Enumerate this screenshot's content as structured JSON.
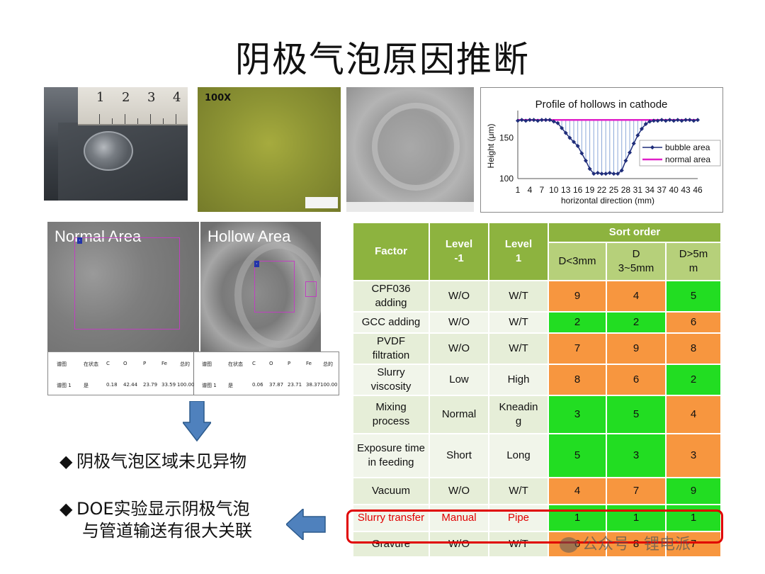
{
  "page": {
    "title": "阴极气泡原因推断"
  },
  "photos": {
    "ruler_numbers": [
      "1",
      "2",
      "3",
      "4"
    ],
    "micro_label": "100X"
  },
  "profile_chart": {
    "chart_data": {
      "type": "line",
      "title": "Profile of hollows in cathode",
      "xlabel": "horizontal direction (mm)",
      "ylabel": "Height (μm)",
      "ylim": [
        100,
        180
      ],
      "yticks": [
        100,
        150
      ],
      "xticks": [
        "1",
        "4",
        "7",
        "10",
        "13",
        "16",
        "19",
        "22",
        "25",
        "28",
        "31",
        "34",
        "37",
        "40",
        "43",
        "46"
      ],
      "x": [
        1,
        2,
        3,
        4,
        5,
        6,
        7,
        8,
        9,
        10,
        11,
        12,
        13,
        14,
        15,
        16,
        17,
        18,
        19,
        20,
        21,
        22,
        23,
        24,
        25,
        26,
        27,
        28,
        29,
        30,
        31,
        32,
        33,
        34,
        35,
        36,
        37,
        38,
        39,
        40,
        41,
        42,
        43,
        44,
        45,
        46
      ],
      "series": [
        {
          "name": "bubble area",
          "color": "#1f2d7a",
          "values": [
            171,
            172,
            171,
            172,
            172,
            171,
            172,
            172,
            172,
            170,
            168,
            162,
            156,
            150,
            145,
            140,
            131,
            122,
            112,
            106,
            107,
            106,
            106,
            107,
            106,
            106,
            110,
            122,
            132,
            143,
            153,
            161,
            167,
            170,
            171,
            171,
            172,
            171,
            172,
            171,
            172,
            171,
            172,
            172,
            171,
            172
          ]
        },
        {
          "name": "normal area",
          "color": "#e020c8",
          "values": [
            172,
            172,
            172,
            172,
            172,
            172,
            172,
            172,
            172,
            172,
            172,
            172,
            172,
            172,
            172,
            172,
            172,
            172,
            172,
            172,
            172,
            172,
            172,
            172,
            172,
            172,
            172,
            172,
            172,
            172,
            172,
            172,
            172,
            172,
            172,
            172,
            172,
            172,
            172,
            172,
            172,
            172,
            172,
            172,
            172,
            172
          ]
        }
      ],
      "legend": "right"
    }
  },
  "sem": {
    "normal_label": "Normal Area",
    "hollow_label": "Hollow Area",
    "table_headers": [
      "谱图",
      "在状态",
      "C",
      "O",
      "P",
      "Fe",
      "总的"
    ],
    "normal_row": [
      "谱图 1",
      "是",
      "0.18",
      "42.44",
      "23.79",
      "33.59",
      "100.00"
    ],
    "hollow_row": [
      "谱图 1",
      "是",
      "0.06",
      "37.87",
      "23.71",
      "38.37",
      "100.00"
    ]
  },
  "bullets": [
    "阴极气泡区域未见异物",
    "DOE实验显示阴极气泡",
    "与管道输送有很大关联"
  ],
  "doe_table": {
    "header": {
      "factor": "Factor",
      "level_minus": "Level\n-1",
      "level_plus": "Level\n1",
      "sort_order": "Sort order",
      "d1": "D<3mm",
      "d2": "D\n3~5mm",
      "d3": "D>5m\nm"
    },
    "rows": [
      {
        "factor": "CPF036\nadding",
        "lm": "W/O",
        "lp": "W/T",
        "d": [
          "9",
          "4",
          "5"
        ],
        "c": [
          "or",
          "or",
          "gr"
        ]
      },
      {
        "factor": "GCC adding",
        "lm": "W/O",
        "lp": "W/T",
        "d": [
          "2",
          "2",
          "6"
        ],
        "c": [
          "gr",
          "gr",
          "or"
        ]
      },
      {
        "factor": "PVDF\nfiltration",
        "lm": "W/O",
        "lp": "W/T",
        "d": [
          "7",
          "9",
          "8"
        ],
        "c": [
          "or",
          "or",
          "or"
        ]
      },
      {
        "factor": "Slurry\nviscosity",
        "lm": "Low",
        "lp": "High",
        "d": [
          "8",
          "6",
          "2"
        ],
        "c": [
          "or",
          "or",
          "gr"
        ]
      },
      {
        "factor": "Mixing\nprocess",
        "lm": "Normal",
        "lp": "Kneadin\ng",
        "d": [
          "3",
          "5",
          "4"
        ],
        "c": [
          "gr",
          "gr",
          "or"
        ]
      },
      {
        "factor": "Exposure time\nin feeding",
        "lm": "Short",
        "lp": "Long",
        "d": [
          "5",
          "3",
          "3"
        ],
        "c": [
          "gr",
          "gr",
          "or"
        ]
      },
      {
        "factor": "Vacuum",
        "lm": "W/O",
        "lp": "W/T",
        "d": [
          "4",
          "7",
          "9"
        ],
        "c": [
          "or",
          "or",
          "gr"
        ]
      },
      {
        "factor": "Slurry transfer",
        "lm": "Manual",
        "lp": "Pipe",
        "d": [
          "1",
          "1",
          "1"
        ],
        "c": [
          "gr",
          "gr",
          "gr"
        ],
        "highlight": true
      },
      {
        "factor": "Gravure",
        "lm": "W/O",
        "lp": "W/T",
        "d": [
          "6",
          "8",
          "7"
        ],
        "c": [
          "or",
          "or",
          "or"
        ]
      }
    ]
  },
  "watermark": "公众号 · 锂电派",
  "colors": {
    "orange": "#f7963f",
    "green": "#22dd22",
    "header_green": "#8db33f",
    "highlight_red": "#e00000",
    "arrow_blue": "#4f81bd"
  }
}
